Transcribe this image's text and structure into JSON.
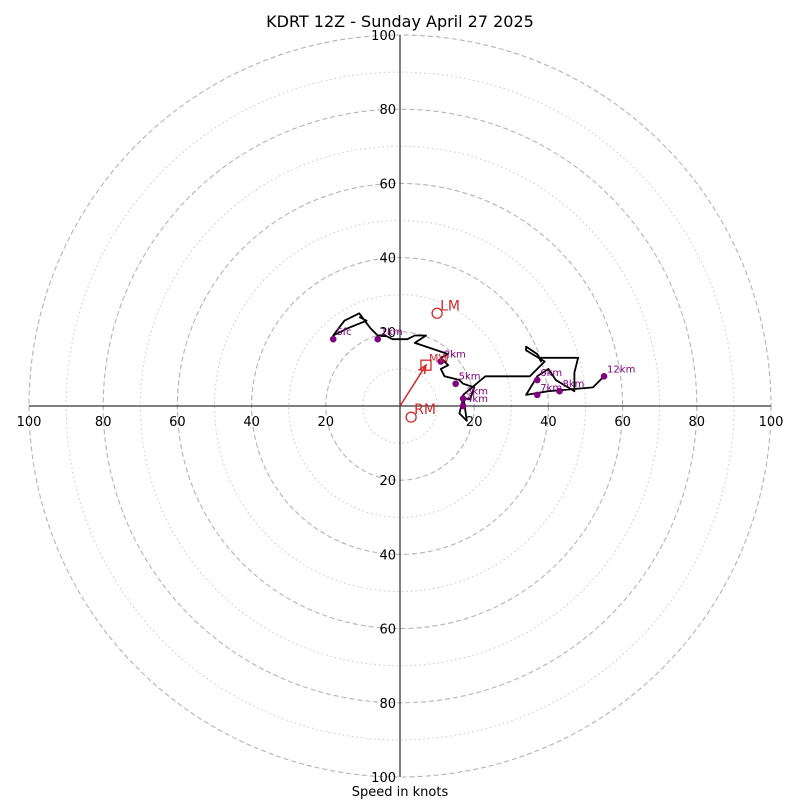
{
  "chart_data": {
    "type": "hodograph",
    "title": "KDRT 12Z - Sunday April 27 2025",
    "xlabel": "Speed in knots",
    "max_speed": 100,
    "major_rings": [
      20,
      40,
      60,
      80,
      100
    ],
    "minor_rings": [
      10,
      30,
      50,
      70,
      90
    ],
    "tick_labels": {
      "up": [
        "20",
        "40",
        "60",
        "80",
        "100"
      ],
      "down": [
        "20",
        "40",
        "60",
        "80",
        "100"
      ],
      "left": [
        "20",
        "40",
        "60",
        "80",
        "100"
      ],
      "right": [
        "20",
        "40",
        "60",
        "80",
        "100"
      ]
    },
    "trace_color": "#000000",
    "marker_color": "#800080",
    "motion_color": "#d62728",
    "trace": [
      [
        -11,
        24
      ],
      [
        -9,
        23
      ],
      [
        -14,
        21
      ],
      [
        -18,
        19
      ],
      [
        -15,
        23
      ],
      [
        -11,
        25
      ],
      [
        -8,
        21
      ],
      [
        -6,
        19
      ],
      [
        -4,
        19
      ],
      [
        -2,
        18
      ],
      [
        2,
        18
      ],
      [
        4,
        19
      ],
      [
        7,
        19
      ],
      [
        4,
        17
      ],
      [
        7,
        16
      ],
      [
        13,
        14
      ],
      [
        11,
        13
      ],
      [
        13,
        11
      ],
      [
        11,
        10
      ],
      [
        12,
        8
      ],
      [
        16,
        7
      ],
      [
        17,
        6
      ],
      [
        20,
        5
      ],
      [
        19,
        2
      ],
      [
        17,
        2
      ],
      [
        16,
        -2
      ],
      [
        18,
        -4
      ],
      [
        17,
        3
      ],
      [
        23,
        8
      ],
      [
        31,
        8
      ],
      [
        35,
        8
      ],
      [
        39,
        12
      ],
      [
        34,
        15
      ],
      [
        34,
        16
      ],
      [
        37,
        14
      ],
      [
        38,
        12
      ],
      [
        38,
        13
      ],
      [
        48,
        13
      ],
      [
        47,
        9
      ],
      [
        47,
        4
      ],
      [
        42,
        7
      ],
      [
        40,
        10
      ],
      [
        37,
        8
      ],
      [
        34,
        3
      ],
      [
        40,
        4
      ],
      [
        52,
        5
      ],
      [
        55,
        8
      ]
    ],
    "height_markers": [
      {
        "label": "Sfc",
        "u": -18,
        "v": 18
      },
      {
        "label": "1km",
        "u": -6,
        "v": 18
      },
      {
        "label": "2km",
        "u": 11,
        "v": 12
      },
      {
        "label": "3km",
        "u": 17,
        "v": 2
      },
      {
        "label": "4km",
        "u": 17,
        "v": 0
      },
      {
        "label": "5km",
        "u": 15,
        "v": 6
      },
      {
        "label": "6km",
        "u": 37,
        "v": 7
      },
      {
        "label": "7km",
        "u": 37,
        "v": 3
      },
      {
        "label": "8km",
        "u": 43,
        "v": 4
      },
      {
        "label": "12km",
        "u": 55,
        "v": 8
      }
    ],
    "motion_markers": [
      {
        "label": "LM",
        "u": 10,
        "v": 25,
        "symbol": "circle"
      },
      {
        "label": "RM",
        "u": 3,
        "v": -3,
        "symbol": "circle"
      },
      {
        "label": "MW",
        "u": 7,
        "v": 11,
        "symbol": "square"
      }
    ],
    "mean_wind_arrow": {
      "u": 7,
      "v": 11
    }
  }
}
